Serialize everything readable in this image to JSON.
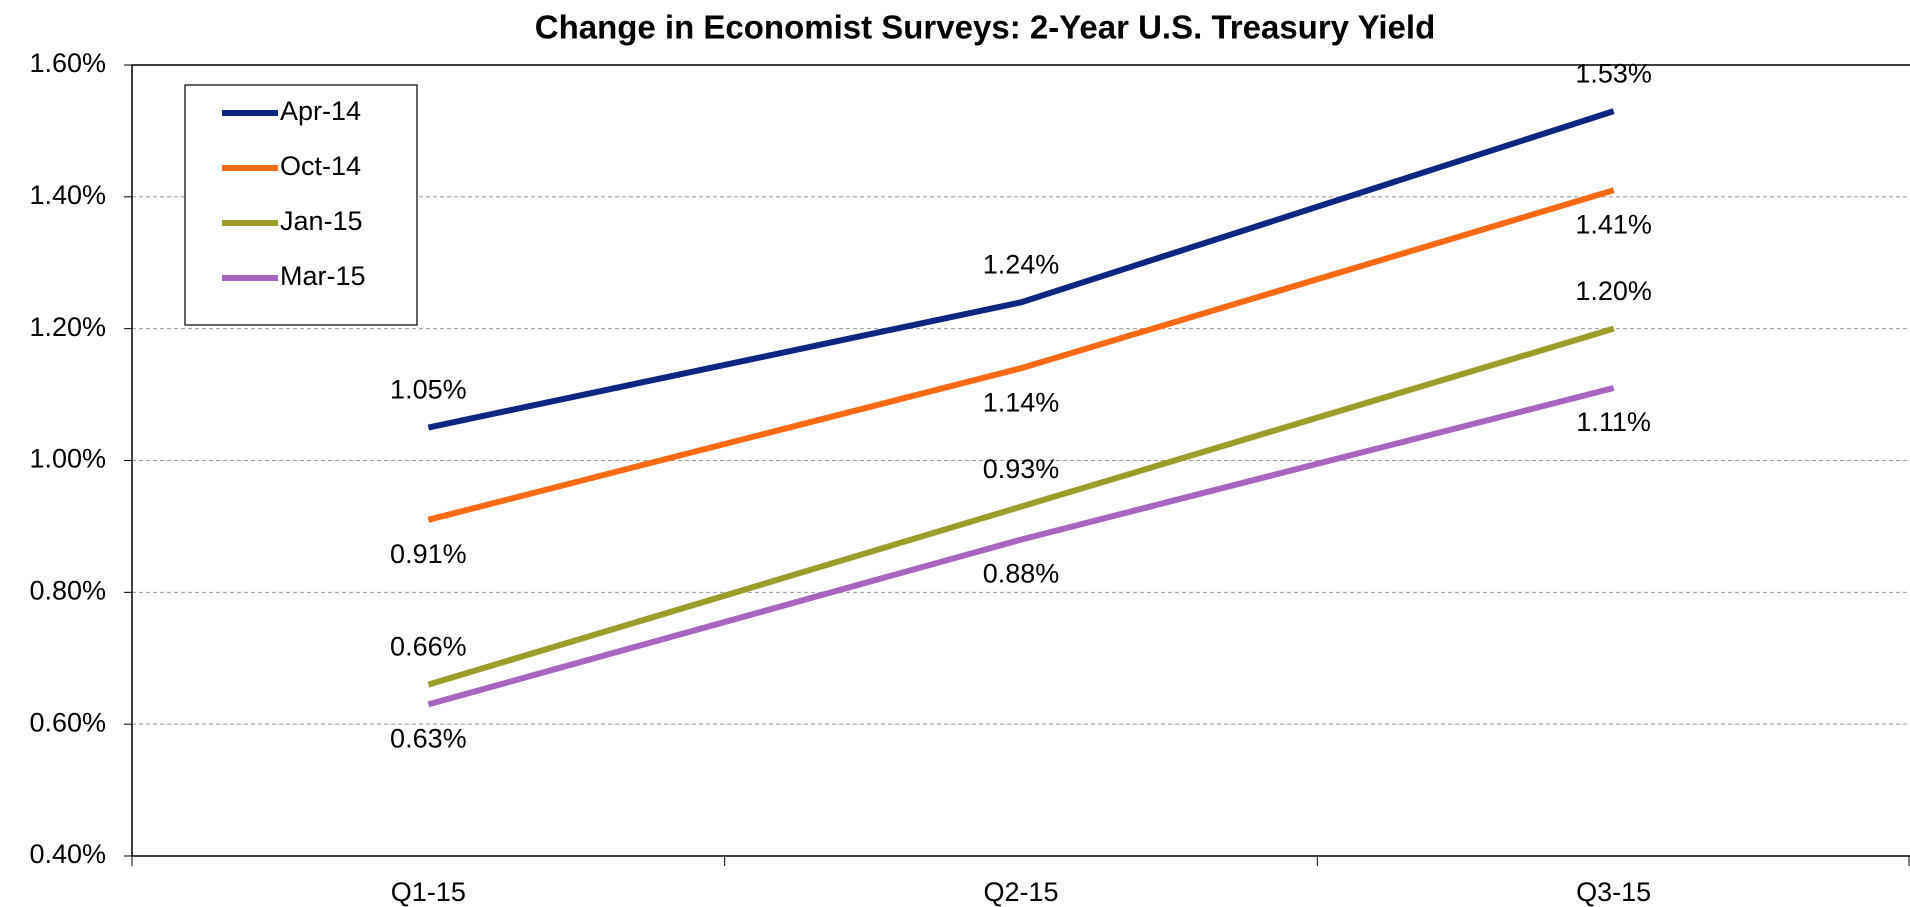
{
  "chart_data": {
    "type": "line",
    "title": "Change in Economist Surveys: 2-Year U.S. Treasury Yield",
    "categories": [
      "Q1-15",
      "Q2-15",
      "Q3-15"
    ],
    "series": [
      {
        "name": "Apr-14",
        "color": "#0d2680",
        "values": [
          1.05,
          1.24,
          1.53
        ],
        "value_labels": [
          "1.05%",
          "1.24%",
          "1.53%"
        ]
      },
      {
        "name": "Oct-14",
        "color": "#ff6a13",
        "values": [
          0.91,
          1.14,
          1.41
        ],
        "value_labels": [
          "0.91%",
          "1.14%",
          "1.41%"
        ]
      },
      {
        "name": "Jan-15",
        "color": "#9c9c2a",
        "values": [
          0.66,
          0.93,
          1.2
        ],
        "value_labels": [
          "0.66%",
          "0.93%",
          "1.20%"
        ]
      },
      {
        "name": "Mar-15",
        "color": "#a865c0",
        "values": [
          0.63,
          0.88,
          1.11
        ],
        "value_labels": [
          "0.63%",
          "0.88%",
          "1.11%"
        ]
      }
    ],
    "ylim": [
      0.4,
      1.6
    ],
    "yticks": [
      {
        "value": 0.4,
        "label": "0.40%"
      },
      {
        "value": 0.6,
        "label": "0.60%"
      },
      {
        "value": 0.8,
        "label": "0.80%"
      },
      {
        "value": 1.0,
        "label": "1.00%"
      },
      {
        "value": 1.2,
        "label": "1.20%"
      },
      {
        "value": 1.4,
        "label": "1.40%"
      },
      {
        "value": 1.6,
        "label": "1.60%"
      }
    ],
    "grid": true,
    "legend": "upper left"
  }
}
